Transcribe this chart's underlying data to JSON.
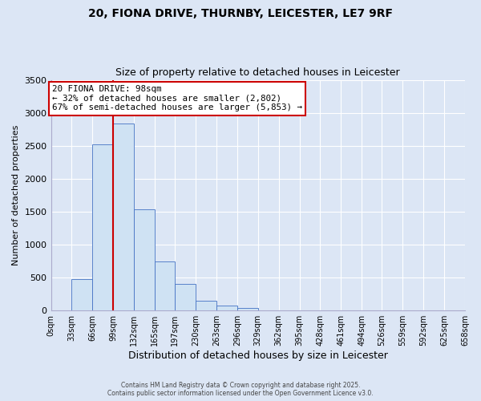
{
  "title": "20, FIONA DRIVE, THURNBY, LEICESTER, LE7 9RF",
  "subtitle": "Size of property relative to detached houses in Leicester",
  "xlabel": "Distribution of detached houses by size in Leicester",
  "ylabel": "Number of detached properties",
  "bar_color": "#cfe2f3",
  "bar_edge_color": "#4472c4",
  "background_color": "#dce6f5",
  "plot_bg_color": "#dce6f5",
  "bin_edges": [
    0,
    33,
    66,
    99,
    132,
    165,
    197,
    230,
    263,
    296,
    329,
    362,
    395,
    428,
    461,
    494,
    526,
    559,
    592,
    625,
    658
  ],
  "bin_labels": [
    "0sqm",
    "33sqm",
    "66sqm",
    "99sqm",
    "132sqm",
    "165sqm",
    "197sqm",
    "230sqm",
    "263sqm",
    "296sqm",
    "329sqm",
    "362sqm",
    "395sqm",
    "428sqm",
    "461sqm",
    "494sqm",
    "526sqm",
    "559sqm",
    "592sqm",
    "625sqm",
    "658sqm"
  ],
  "bar_heights": [
    0,
    480,
    2520,
    2840,
    1530,
    740,
    400,
    150,
    75,
    35,
    0,
    0,
    0,
    0,
    0,
    0,
    0,
    0,
    0,
    0
  ],
  "ylim": [
    0,
    3500
  ],
  "yticks": [
    0,
    500,
    1000,
    1500,
    2000,
    2500,
    3000,
    3500
  ],
  "property_line_x": 99,
  "annotation_title": "20 FIONA DRIVE: 98sqm",
  "annotation_line1": "← 32% of detached houses are smaller (2,802)",
  "annotation_line2": "67% of semi-detached houses are larger (5,853) →",
  "footer1": "Contains HM Land Registry data © Crown copyright and database right 2025.",
  "footer2": "Contains public sector information licensed under the Open Government Licence v3.0.",
  "grid_color": "#ffffff",
  "annotation_box_color": "#ffffff",
  "annotation_box_edge": "#cc0000",
  "property_line_color": "#cc0000"
}
